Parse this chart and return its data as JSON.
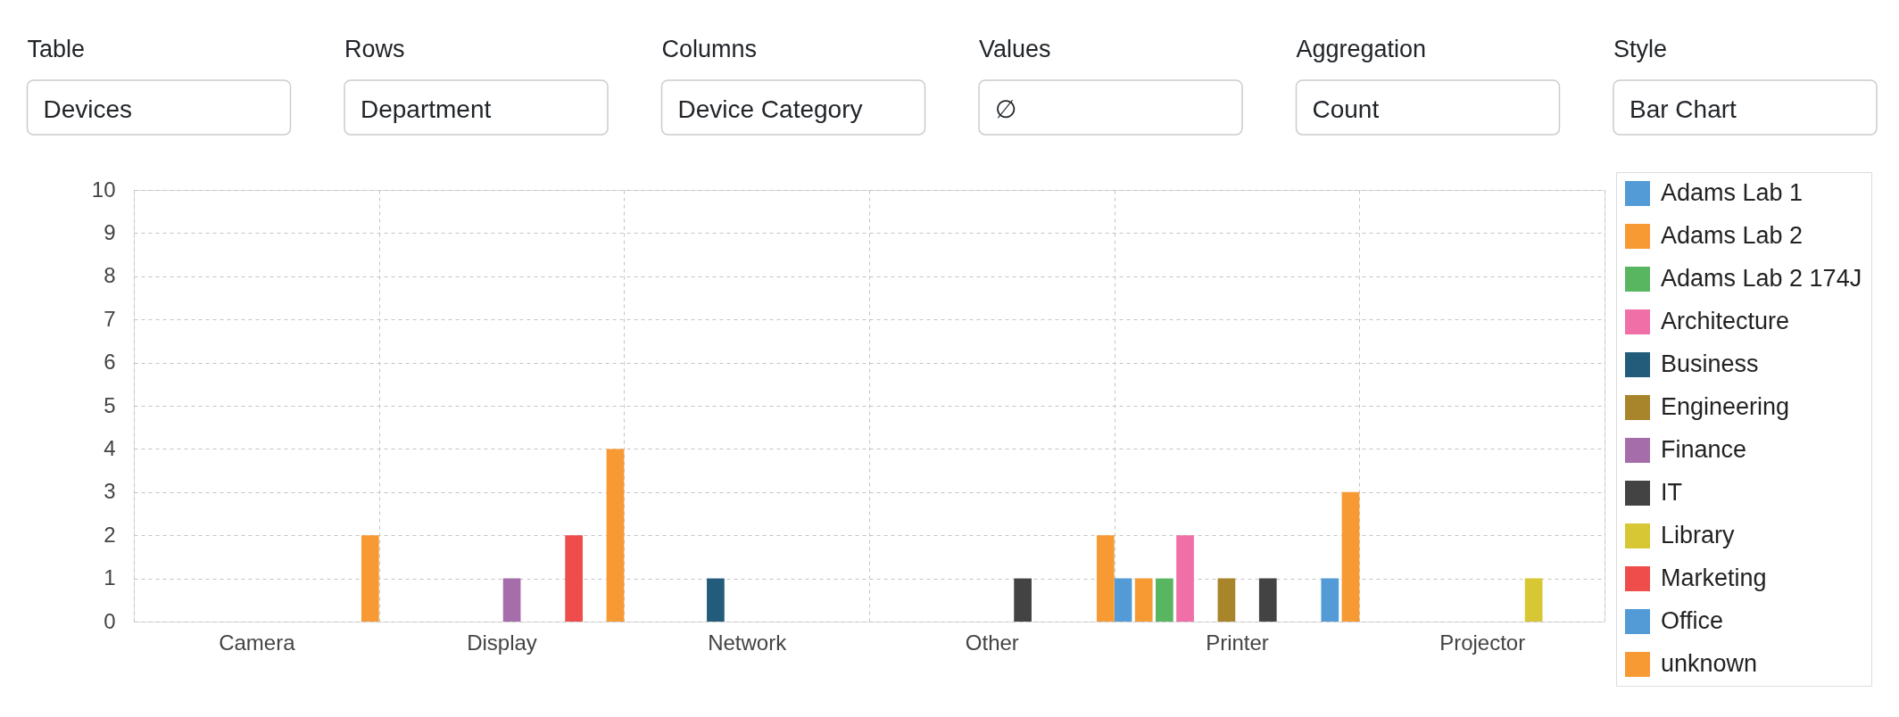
{
  "chart_data": [
    {
      "type": "other",
      "annotations": [
        "Table",
        "Devices",
        "Rows",
        "Department",
        "Columns",
        "Device Category",
        "Values",
        "∅",
        "Aggregation",
        "Count",
        "Style",
        "Bar Chart"
      ]
    },
    {
      "type": "bar",
      "categories": [
        "Camera",
        "Display",
        "Network",
        "Other",
        "Printer",
        "Projector"
      ],
      "series": [
        {
          "name": "Adams Lab 1",
          "color": "#529bd6",
          "values": [
            null,
            null,
            null,
            null,
            1,
            null
          ]
        },
        {
          "name": "Adams Lab 2",
          "color": "#f89a34",
          "values": [
            null,
            null,
            null,
            null,
            1,
            null
          ]
        },
        {
          "name": "Adams Lab 2 174J",
          "color": "#58b660",
          "values": [
            null,
            null,
            null,
            null,
            1,
            null
          ]
        },
        {
          "name": "Architecture",
          "color": "#f06fa7",
          "values": [
            null,
            null,
            null,
            null,
            2,
            null
          ]
        },
        {
          "name": "Business",
          "color": "#225c7a",
          "values": [
            null,
            null,
            1,
            null,
            null,
            null
          ]
        },
        {
          "name": "Engineering",
          "color": "#a8842b",
          "values": [
            null,
            null,
            null,
            null,
            1,
            null
          ]
        },
        {
          "name": "Finance",
          "color": "#a56eaa",
          "values": [
            null,
            1,
            null,
            null,
            null,
            null
          ]
        },
        {
          "name": "IT",
          "color": "#434343",
          "values": [
            null,
            null,
            null,
            1,
            1,
            null
          ]
        },
        {
          "name": "Library",
          "color": "#d8c734",
          "values": [
            null,
            null,
            null,
            null,
            null,
            1
          ]
        },
        {
          "name": "Marketing",
          "color": "#ee4d4b",
          "values": [
            null,
            2,
            null,
            null,
            null,
            null
          ]
        },
        {
          "name": "Office",
          "color": "#529bd6",
          "values": [
            null,
            null,
            null,
            null,
            1,
            null
          ]
        },
        {
          "name": "unknown",
          "color": "#f89a34",
          "values": [
            2,
            4,
            null,
            2,
            3,
            null
          ]
        }
      ],
      "ylim": [
        0,
        10
      ],
      "yticks": [
        0,
        1,
        2,
        3,
        4,
        5,
        6,
        7,
        8,
        9,
        10
      ],
      "grid": true,
      "legend": "right"
    }
  ]
}
